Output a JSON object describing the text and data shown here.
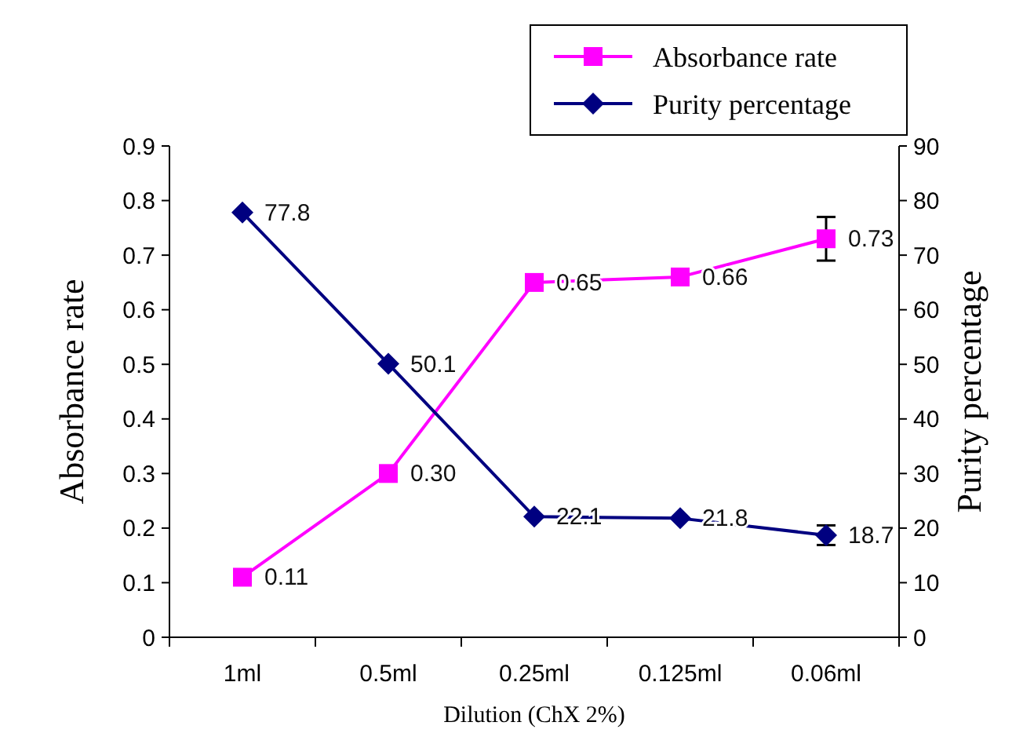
{
  "chart_data": {
    "type": "line",
    "xlabel": "Dilution (ChX 2%)",
    "ylabel": "Absorbance rate",
    "y2label": "Purity percentage",
    "categories": [
      "1ml",
      "0.5ml",
      "0.25ml",
      "0.125ml",
      "0.06ml"
    ],
    "series": [
      {
        "name": "Absorbance rate",
        "color": "#ff00ff",
        "marker": "square",
        "values": [
          0.11,
          0.3,
          0.65,
          0.66,
          0.73
        ],
        "value_labels": [
          "0.11",
          "0.30",
          "0.65",
          "0.66",
          "0.73"
        ],
        "errors": [
          null,
          null,
          null,
          null,
          0.04
        ]
      },
      {
        "name": "Purity percentage",
        "color": "#000080",
        "marker": "diamond",
        "axis": "y2",
        "values": [
          77.8,
          50.1,
          22.1,
          21.8,
          18.7
        ],
        "value_labels": [
          "77.8",
          "50.1",
          "22.1",
          "21.8",
          "18.7"
        ],
        "errors": [
          null,
          null,
          null,
          null,
          1.8
        ]
      }
    ],
    "ylim": [
      0,
      0.9
    ],
    "yticks": [
      0,
      0.1,
      0.2,
      0.3,
      0.4,
      0.5,
      0.6,
      0.7,
      0.8,
      0.9
    ],
    "y2lim": [
      0,
      90
    ],
    "y2ticks": [
      0,
      10,
      20,
      30,
      40,
      50,
      60,
      70,
      80,
      90
    ],
    "legend": "top",
    "grid": false
  }
}
